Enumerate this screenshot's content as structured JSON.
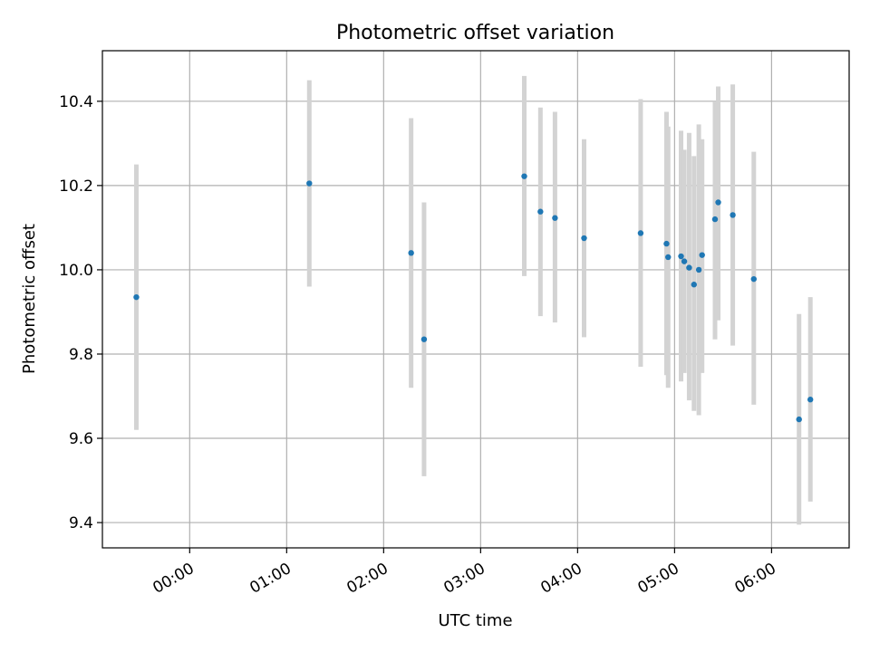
{
  "chart_data": {
    "type": "scatter",
    "title": "Photometric offset variation",
    "xlabel": "UTC time",
    "ylabel": "Photometric offset",
    "xlim": [
      "23:06",
      "06:48"
    ],
    "ylim": [
      9.34,
      10.52
    ],
    "xticks": [
      "00:00",
      "01:00",
      "02:00",
      "03:00",
      "04:00",
      "05:00",
      "06:00"
    ],
    "yticks": [
      9.4,
      9.6,
      9.8,
      10.0,
      10.2,
      10.4
    ],
    "grid": true,
    "marker_color": "#1f77b4",
    "errorbar_color": "#d3d3d3",
    "grid_color": "#b0b0b0",
    "points": [
      {
        "time": "23:27",
        "value": 9.935,
        "low": 9.62,
        "high": 10.25
      },
      {
        "time": "01:14",
        "value": 10.205,
        "low": 9.96,
        "high": 10.45
      },
      {
        "time": "02:17",
        "value": 10.04,
        "low": 9.72,
        "high": 10.36
      },
      {
        "time": "02:25",
        "value": 9.835,
        "low": 9.51,
        "high": 10.16
      },
      {
        "time": "03:27",
        "value": 10.222,
        "low": 9.985,
        "high": 10.46
      },
      {
        "time": "03:37",
        "value": 10.138,
        "low": 9.89,
        "high": 10.385
      },
      {
        "time": "03:46",
        "value": 10.123,
        "low": 9.875,
        "high": 10.375
      },
      {
        "time": "04:04",
        "value": 10.075,
        "low": 9.84,
        "high": 10.31
      },
      {
        "time": "04:39",
        "value": 10.087,
        "low": 9.77,
        "high": 10.405
      },
      {
        "time": "04:55",
        "value": 10.062,
        "low": 9.75,
        "high": 10.375
      },
      {
        "time": "04:56",
        "value": 10.03,
        "low": 9.72,
        "high": 10.34
      },
      {
        "time": "05:04",
        "value": 10.032,
        "low": 9.735,
        "high": 10.33
      },
      {
        "time": "05:06",
        "value": 10.02,
        "low": 9.755,
        "high": 10.285
      },
      {
        "time": "05:09",
        "value": 10.005,
        "low": 9.69,
        "high": 10.325
      },
      {
        "time": "05:12",
        "value": 9.965,
        "low": 9.665,
        "high": 10.27
      },
      {
        "time": "05:15",
        "value": 10.0,
        "low": 9.655,
        "high": 10.345
      },
      {
        "time": "05:17",
        "value": 10.035,
        "low": 9.755,
        "high": 10.31
      },
      {
        "time": "05:25",
        "value": 10.12,
        "low": 9.835,
        "high": 10.4
      },
      {
        "time": "05:27",
        "value": 10.16,
        "low": 9.88,
        "high": 10.435
      },
      {
        "time": "05:36",
        "value": 10.13,
        "low": 9.82,
        "high": 10.44
      },
      {
        "time": "05:49",
        "value": 9.978,
        "low": 9.68,
        "high": 10.28
      },
      {
        "time": "06:17",
        "value": 9.645,
        "low": 9.395,
        "high": 9.895
      },
      {
        "time": "06:24",
        "value": 9.692,
        "low": 9.45,
        "high": 9.935
      }
    ]
  }
}
